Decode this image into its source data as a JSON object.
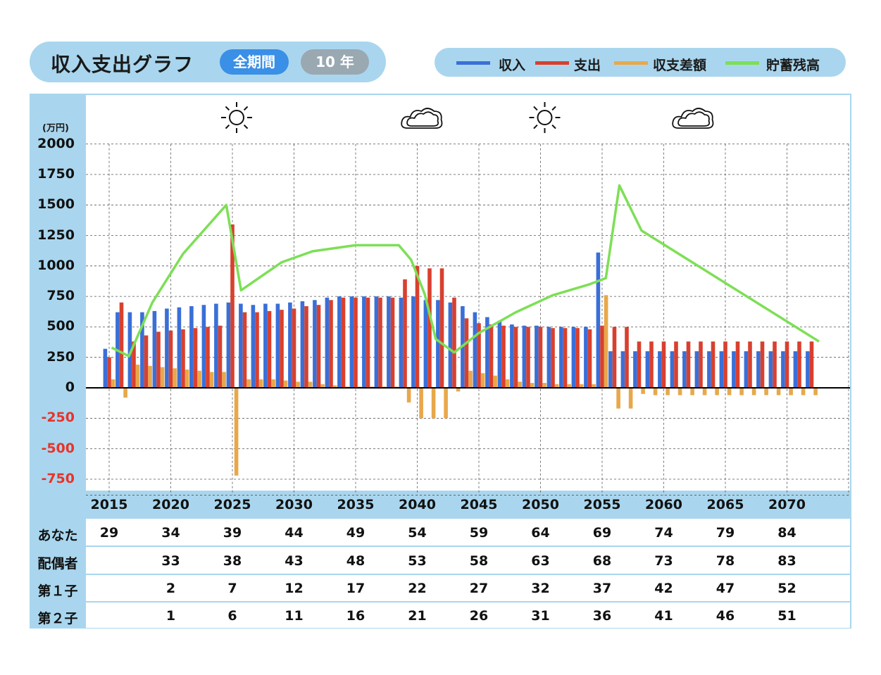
{
  "header": {
    "title": "収入支出グラフ",
    "period_all": "全期間",
    "period_10": "10 年"
  },
  "legend": [
    {
      "label": "収入",
      "color": "#3a6fd8"
    },
    {
      "label": "支出",
      "color": "#d8402e"
    },
    {
      "label": "収支差額",
      "color": "#e8a84a"
    },
    {
      "label": "貯蓄残高",
      "color": "#7ddf56"
    }
  ],
  "weather": [
    {
      "year": 2025,
      "icon": "sun-icon"
    },
    {
      "year": 2040,
      "icon": "cloud-icon"
    },
    {
      "year": 2050,
      "icon": "sun-icon"
    },
    {
      "year": 2062,
      "icon": "cloud-icon"
    }
  ],
  "chart_data": {
    "type": "bar",
    "title": "収入支出グラフ",
    "unit": "(万円)",
    "ylim": [
      -800,
      2000
    ],
    "yticks": [
      2000,
      1750,
      1500,
      1250,
      1000,
      750,
      500,
      250,
      0,
      -250,
      -500,
      -750
    ],
    "grid": true,
    "x_tick_labels": [
      2015,
      2020,
      2025,
      2030,
      2035,
      2040,
      2045,
      2050,
      2055,
      2060,
      2065,
      2070
    ],
    "years": [
      2015,
      2016,
      2017,
      2018,
      2019,
      2020,
      2021,
      2022,
      2023,
      2024,
      2025,
      2026,
      2027,
      2028,
      2029,
      2030,
      2031,
      2032,
      2033,
      2034,
      2035,
      2036,
      2037,
      2038,
      2039,
      2040,
      2041,
      2042,
      2043,
      2044,
      2045,
      2046,
      2047,
      2048,
      2049,
      2050,
      2051,
      2052,
      2053,
      2054,
      2055,
      2056,
      2057,
      2058,
      2059,
      2060,
      2061,
      2062,
      2063,
      2064,
      2065,
      2066,
      2067,
      2068,
      2069,
      2070,
      2071,
      2072
    ],
    "series": [
      {
        "name": "収入",
        "type": "bar",
        "values": [
          320,
          620,
          620,
          620,
          630,
          650,
          660,
          670,
          680,
          690,
          700,
          690,
          680,
          690,
          690,
          700,
          710,
          720,
          740,
          750,
          750,
          750,
          750,
          750,
          740,
          750,
          720,
          720,
          700,
          670,
          620,
          580,
          550,
          520,
          510,
          510,
          500,
          500,
          500,
          500,
          1110,
          300,
          300,
          300,
          300,
          300,
          300,
          300,
          300,
          300,
          300,
          300,
          300,
          300,
          300,
          300,
          300,
          300
        ]
      },
      {
        "name": "支出",
        "type": "bar",
        "values": [
          250,
          700,
          380,
          430,
          460,
          470,
          480,
          490,
          500,
          510,
          1340,
          620,
          620,
          630,
          640,
          650,
          670,
          680,
          720,
          740,
          740,
          740,
          740,
          740,
          890,
          1000,
          980,
          980,
          740,
          570,
          530,
          520,
          510,
          500,
          500,
          500,
          490,
          490,
          490,
          480,
          510,
          500,
          500,
          380,
          380,
          380,
          380,
          380,
          380,
          380,
          380,
          380,
          380,
          380,
          380,
          380,
          380,
          380
        ]
      },
      {
        "name": "収支差額",
        "type": "bar",
        "values": [
          70,
          -80,
          190,
          180,
          170,
          160,
          150,
          140,
          130,
          130,
          -720,
          70,
          70,
          70,
          60,
          50,
          50,
          30,
          20,
          10,
          10,
          10,
          10,
          10,
          -120,
          -250,
          -250,
          -250,
          -30,
          140,
          120,
          100,
          70,
          50,
          40,
          40,
          30,
          30,
          30,
          30,
          760,
          -170,
          -170,
          -50,
          -60,
          -60,
          -60,
          -60,
          -60,
          -60,
          -60,
          -60,
          -60,
          -60,
          -60,
          -60,
          -60,
          -60
        ]
      },
      {
        "name": "貯蓄残高",
        "type": "line",
        "points": [
          [
            2015.2,
            330
          ],
          [
            2016.6,
            260
          ],
          [
            2018.5,
            700
          ],
          [
            2021,
            1100
          ],
          [
            2024.5,
            1500
          ],
          [
            2025.7,
            800
          ],
          [
            2029,
            1030
          ],
          [
            2031.5,
            1120
          ],
          [
            2035,
            1170
          ],
          [
            2037.5,
            1170
          ],
          [
            2038.5,
            1170
          ],
          [
            2039.5,
            1050
          ],
          [
            2040.6,
            770
          ],
          [
            2041.5,
            400
          ],
          [
            2043,
            290
          ],
          [
            2045,
            450
          ],
          [
            2048,
            620
          ],
          [
            2051,
            760
          ],
          [
            2054,
            850
          ],
          [
            2055.3,
            900
          ],
          [
            2056.4,
            1660
          ],
          [
            2058.2,
            1290
          ],
          [
            2072.6,
            380
          ]
        ]
      }
    ]
  },
  "table": {
    "rows": [
      {
        "label": "あなた",
        "ages": [
          "29",
          "34",
          "39",
          "44",
          "49",
          "54",
          "59",
          "64",
          "69",
          "74",
          "79",
          "84"
        ]
      },
      {
        "label": "配偶者",
        "ages": [
          "",
          "33",
          "38",
          "43",
          "48",
          "53",
          "58",
          "63",
          "68",
          "73",
          "78",
          "83"
        ]
      },
      {
        "label": "第１子",
        "ages": [
          "",
          "2",
          "7",
          "12",
          "17",
          "22",
          "27",
          "32",
          "37",
          "42",
          "47",
          "52"
        ]
      },
      {
        "label": "第２子",
        "ages": [
          "",
          "1",
          "6",
          "11",
          "16",
          "21",
          "26",
          "31",
          "36",
          "41",
          "46",
          "51"
        ]
      }
    ]
  }
}
